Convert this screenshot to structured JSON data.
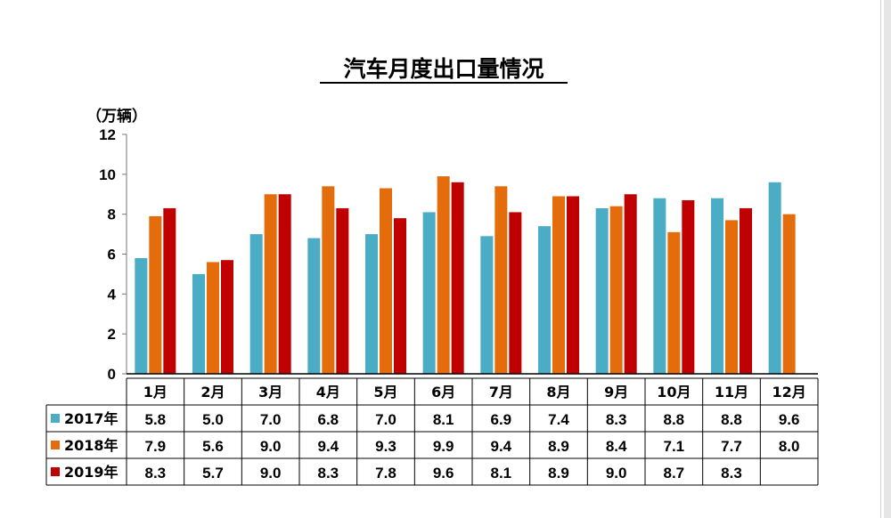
{
  "chart_data": {
    "type": "bar",
    "title": "汽车月度出口量情况",
    "unit_label": "（万辆）",
    "ylim": [
      0,
      12
    ],
    "yticks": [
      "0",
      "2",
      "4",
      "6",
      "8",
      "10",
      "12"
    ],
    "categories": [
      "1月",
      "2月",
      "3月",
      "4月",
      "5月",
      "6月",
      "7月",
      "8月",
      "9月",
      "10月",
      "11月",
      "12月"
    ],
    "series": [
      {
        "name": "2017年",
        "color": "#4bacc6",
        "values": [
          5.8,
          5.0,
          7.0,
          6.8,
          7.0,
          8.1,
          6.9,
          7.4,
          8.3,
          8.8,
          8.8,
          9.6
        ],
        "labels": [
          "5.8",
          "5.0",
          "7.0",
          "6.8",
          "7.0",
          "8.1",
          "6.9",
          "7.4",
          "8.3",
          "8.8",
          "8.8",
          "9.6"
        ]
      },
      {
        "name": "2018年",
        "color": "#e46c0a",
        "values": [
          7.9,
          5.6,
          9.0,
          9.4,
          9.3,
          9.9,
          9.4,
          8.9,
          8.4,
          7.1,
          7.7,
          8.0
        ],
        "labels": [
          "7.9",
          "5.6",
          "9.0",
          "9.4",
          "9.3",
          "9.9",
          "9.4",
          "8.9",
          "8.4",
          "7.1",
          "7.7",
          "8.0"
        ]
      },
      {
        "name": "2019年",
        "color": "#c00000",
        "values": [
          8.3,
          5.7,
          9.0,
          8.3,
          7.8,
          9.6,
          8.1,
          8.9,
          9.0,
          8.7,
          8.3,
          null
        ],
        "labels": [
          "8.3",
          "5.7",
          "9.0",
          "8.3",
          "7.8",
          "9.6",
          "8.1",
          "8.9",
          "9.0",
          "8.7",
          "8.3",
          ""
        ]
      }
    ],
    "grid": false,
    "legend": "data table below chart"
  }
}
